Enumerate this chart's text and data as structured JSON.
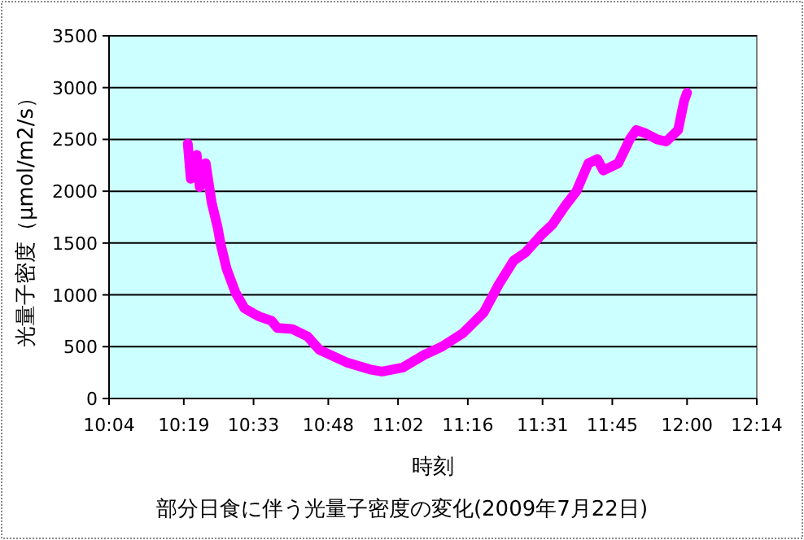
{
  "chart_data": {
    "type": "line",
    "title": "部分日食に伴う光量子密度の変化(2009年7月22日)",
    "xlabel": "時刻",
    "ylabel": "光量子密度（μmol/m2/s）",
    "xlim": [
      10.0667,
      12.2333
    ],
    "ylim": [
      0,
      3500
    ],
    "xticks": [
      {
        "value": 10.0667,
        "label": "10:04"
      },
      {
        "value": 10.3167,
        "label": "10:19"
      },
      {
        "value": 10.55,
        "label": "10:33"
      },
      {
        "value": 10.8,
        "label": "10:48"
      },
      {
        "value": 11.0333,
        "label": "11:02"
      },
      {
        "value": 11.2667,
        "label": "11:16"
      },
      {
        "value": 11.5167,
        "label": "11:31"
      },
      {
        "value": 11.75,
        "label": "11:45"
      },
      {
        "value": 12.0,
        "label": "12:00"
      },
      {
        "value": 12.2333,
        "label": "12:14"
      }
    ],
    "yticks": [
      0,
      500,
      1000,
      1500,
      2000,
      2500,
      3000,
      3500
    ],
    "grid": "y",
    "x": [
      10.33,
      10.34,
      10.36,
      10.37,
      10.39,
      10.41,
      10.43,
      10.44,
      10.46,
      10.49,
      10.52,
      10.55,
      10.57,
      10.61,
      10.63,
      10.68,
      10.73,
      10.77,
      10.86,
      10.94,
      10.98,
      11.05,
      11.12,
      11.18,
      11.25,
      11.32,
      11.37,
      11.42,
      11.46,
      11.51,
      11.55,
      11.59,
      11.63,
      11.67,
      11.7,
      11.72,
      11.77,
      11.81,
      11.83,
      11.86,
      11.9,
      11.93,
      11.97,
      11.99,
      12.0
    ],
    "series": [
      {
        "color": "#ff00ff",
        "values": [
          2460,
          2120,
          2350,
          2040,
          2270,
          1890,
          1650,
          1490,
          1250,
          1020,
          870,
          820,
          790,
          750,
          680,
          670,
          600,
          470,
          350,
          280,
          260,
          300,
          420,
          500,
          630,
          830,
          1100,
          1330,
          1410,
          1570,
          1680,
          1850,
          2000,
          2270,
          2310,
          2200,
          2270,
          2510,
          2590,
          2560,
          2500,
          2480,
          2590,
          2870,
          2950
        ]
      }
    ]
  }
}
